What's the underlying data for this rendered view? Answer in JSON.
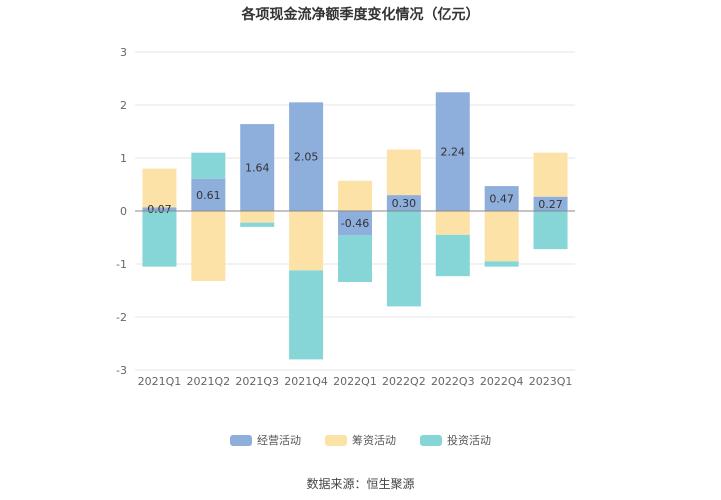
{
  "chart_data": {
    "type": "bar",
    "stacked": true,
    "title": "各项现金流净额季度变化情况（亿元）",
    "categories": [
      "2021Q1",
      "2021Q2",
      "2021Q3",
      "2021Q4",
      "2022Q1",
      "2022Q2",
      "2022Q3",
      "2022Q4",
      "2023Q1"
    ],
    "series": [
      {
        "name": "经营活动",
        "color": "#8eaedc",
        "values": [
          0.07,
          0.61,
          1.64,
          2.05,
          -0.46,
          0.3,
          2.24,
          0.47,
          0.27
        ]
      },
      {
        "name": "筹资活动",
        "color": "#fde2a8",
        "values": [
          0.73,
          -1.32,
          -0.22,
          -1.12,
          0.57,
          0.86,
          -0.45,
          -0.95,
          0.83
        ]
      },
      {
        "name": "投资活动",
        "color": "#86d6d8",
        "values": [
          -1.05,
          0.49,
          -0.08,
          -1.68,
          -0.88,
          -1.8,
          -0.78,
          -0.1,
          -0.72
        ]
      }
    ],
    "data_labels": [
      "0.07",
      "0.61",
      "1.64",
      "2.05",
      "-0.46",
      "0.30",
      "2.24",
      "0.47",
      "0.27"
    ],
    "ylim": [
      -3,
      3
    ],
    "yticks": [
      -3,
      -2,
      -1,
      0,
      1,
      2,
      3
    ],
    "ytick_labels": [
      "-3",
      "-2",
      "-1",
      "0",
      "1",
      "2",
      "3"
    ],
    "grid": true,
    "legend_position": "bottom"
  },
  "source_note": "数据来源：恒生聚源"
}
